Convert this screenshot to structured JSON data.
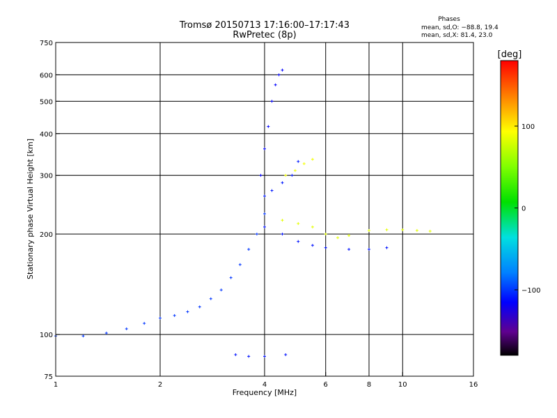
{
  "title_line1": "Tromsø 20150713 17:16:00–17:17:43",
  "title_line2": "RwPretec (8p)",
  "phases": {
    "heading": "Phases",
    "line1": "mean, sd,O: −88.8, 19.4",
    "line2": "mean, sd,X:  81.4, 23.0"
  },
  "colorbar": {
    "unit_label": "[deg]",
    "tick_labels": [
      "100",
      "0",
      "−100"
    ],
    "tick_values": [
      100,
      0,
      -100
    ],
    "range": [
      -180,
      180
    ]
  },
  "chart_data": {
    "type": "scatter",
    "title": "Tromsø 20150713 17:16:00–17:17:43",
    "subtitle": "RwPretec (8p)",
    "xlabel": "Frequency [MHz]",
    "ylabel": "Stationary phase Virtual Height [km]",
    "x_scale": "log",
    "y_scale": "log",
    "xlim": [
      1,
      16
    ],
    "ylim": [
      75,
      750
    ],
    "x_ticks": [
      1,
      2,
      4,
      6,
      8,
      10,
      16
    ],
    "x_tick_labels": [
      "1",
      "2",
      "4",
      "6",
      "8",
      "10",
      "16"
    ],
    "y_ticks": [
      75,
      100,
      200,
      300,
      400,
      500,
      600,
      750
    ],
    "y_tick_labels": [
      "75",
      "100",
      "200",
      "300",
      "400",
      "500",
      "600",
      "750"
    ],
    "x_gridlines": [
      2,
      4,
      6,
      8,
      10
    ],
    "y_gridlines": [
      100,
      200,
      300,
      400,
      500,
      600
    ],
    "series": [
      {
        "mode": "O",
        "segments": [
          {
            "x": [
              1.0,
              1.2,
              1.4,
              1.6,
              1.8,
              2.0,
              2.2,
              2.4,
              2.6,
              2.8,
              3.0,
              3.2,
              3.4,
              3.6,
              3.8,
              4.0
            ],
            "y": [
              99,
              99,
              101,
              104,
              108,
              112,
              114,
              117,
              121,
              128,
              136,
              148,
              162,
              180,
              200,
              230
            ],
            "phase": -100
          },
          {
            "x": [
              3.9,
              4.0,
              4.1,
              4.2,
              4.3,
              4.4,
              4.5
            ],
            "y": [
              300,
              360,
              420,
              500,
              560,
              600,
              620
            ],
            "phase": -115
          },
          {
            "x": [
              4.0,
              4.2,
              4.5,
              4.8,
              5.0
            ],
            "y": [
              260,
              270,
              285,
              300,
              330
            ],
            "phase": -108
          },
          {
            "x": [
              4.0,
              4.5,
              5.0,
              5.5,
              6.0,
              7.0,
              8.0,
              9.0
            ],
            "y": [
              210,
              200,
              190,
              185,
              182,
              180,
              180,
              182
            ],
            "phase": -110
          },
          {
            "x": [
              3.3,
              3.6,
              4.0,
              4.6
            ],
            "y": [
              87,
              86,
              86,
              87
            ],
            "phase": -110
          }
        ]
      },
      {
        "mode": "X",
        "segments": [
          {
            "x": [
              4.5,
              5.0,
              5.5,
              6.0,
              6.5,
              7.0,
              8.0,
              9.0,
              10.0,
              11.0,
              12.0
            ],
            "y": [
              220,
              215,
              210,
              200,
              195,
              198,
              205,
              206,
              206,
              205,
              204
            ],
            "phase": 85
          },
          {
            "x": [
              4.6,
              4.9,
              5.2,
              5.5
            ],
            "y": [
              300,
              310,
              325,
              335
            ],
            "phase": 90
          }
        ]
      }
    ]
  }
}
